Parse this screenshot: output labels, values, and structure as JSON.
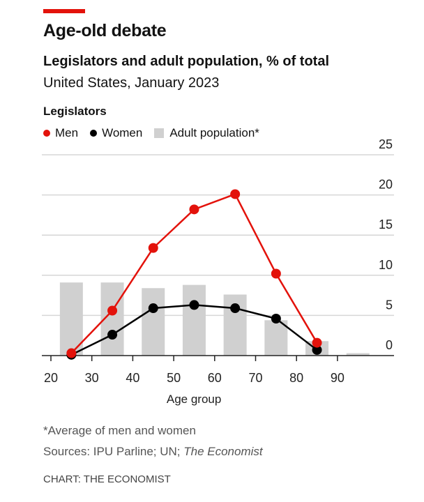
{
  "colors": {
    "men": "#e3120b",
    "women": "#000000",
    "population": "#d0d0d0",
    "grid": "#d6d6d6"
  },
  "chart_data": {
    "type": "line",
    "title": "Age-old debate",
    "subtitle": "Legislators and adult population, % of total",
    "subsubtitle": "United States, January 2023",
    "legend_title": "Legislators",
    "xlabel": "Age group",
    "ylabel": "",
    "xlim": [
      20,
      100
    ],
    "ylim": [
      0,
      25
    ],
    "xticks": [
      20,
      30,
      40,
      50,
      60,
      70,
      80,
      90
    ],
    "yticks": [
      0,
      5,
      10,
      15,
      20,
      25
    ],
    "grid": true,
    "legend_position": "top-left",
    "x": [
      25,
      35,
      45,
      55,
      65,
      75,
      85
    ],
    "series": [
      {
        "name": "Men",
        "type": "line",
        "values": [
          0.3,
          5.6,
          13.4,
          18.2,
          20.1,
          10.2,
          1.6
        ]
      },
      {
        "name": "Women",
        "type": "line",
        "values": [
          0.1,
          2.6,
          5.9,
          6.3,
          5.9,
          4.6,
          0.7
        ]
      },
      {
        "name": "Adult population*",
        "type": "bar",
        "x": [
          25,
          35,
          45,
          55,
          65,
          75,
          85,
          95
        ],
        "values": [
          9.1,
          9.1,
          8.4,
          8.8,
          7.6,
          4.4,
          1.8,
          0.3
        ]
      }
    ],
    "footnote": "*Average of men and women",
    "source_prefix": "Sources: IPU Parline; UN; ",
    "source_italic": "The Economist",
    "credit": "CHART: THE ECONOMIST"
  }
}
